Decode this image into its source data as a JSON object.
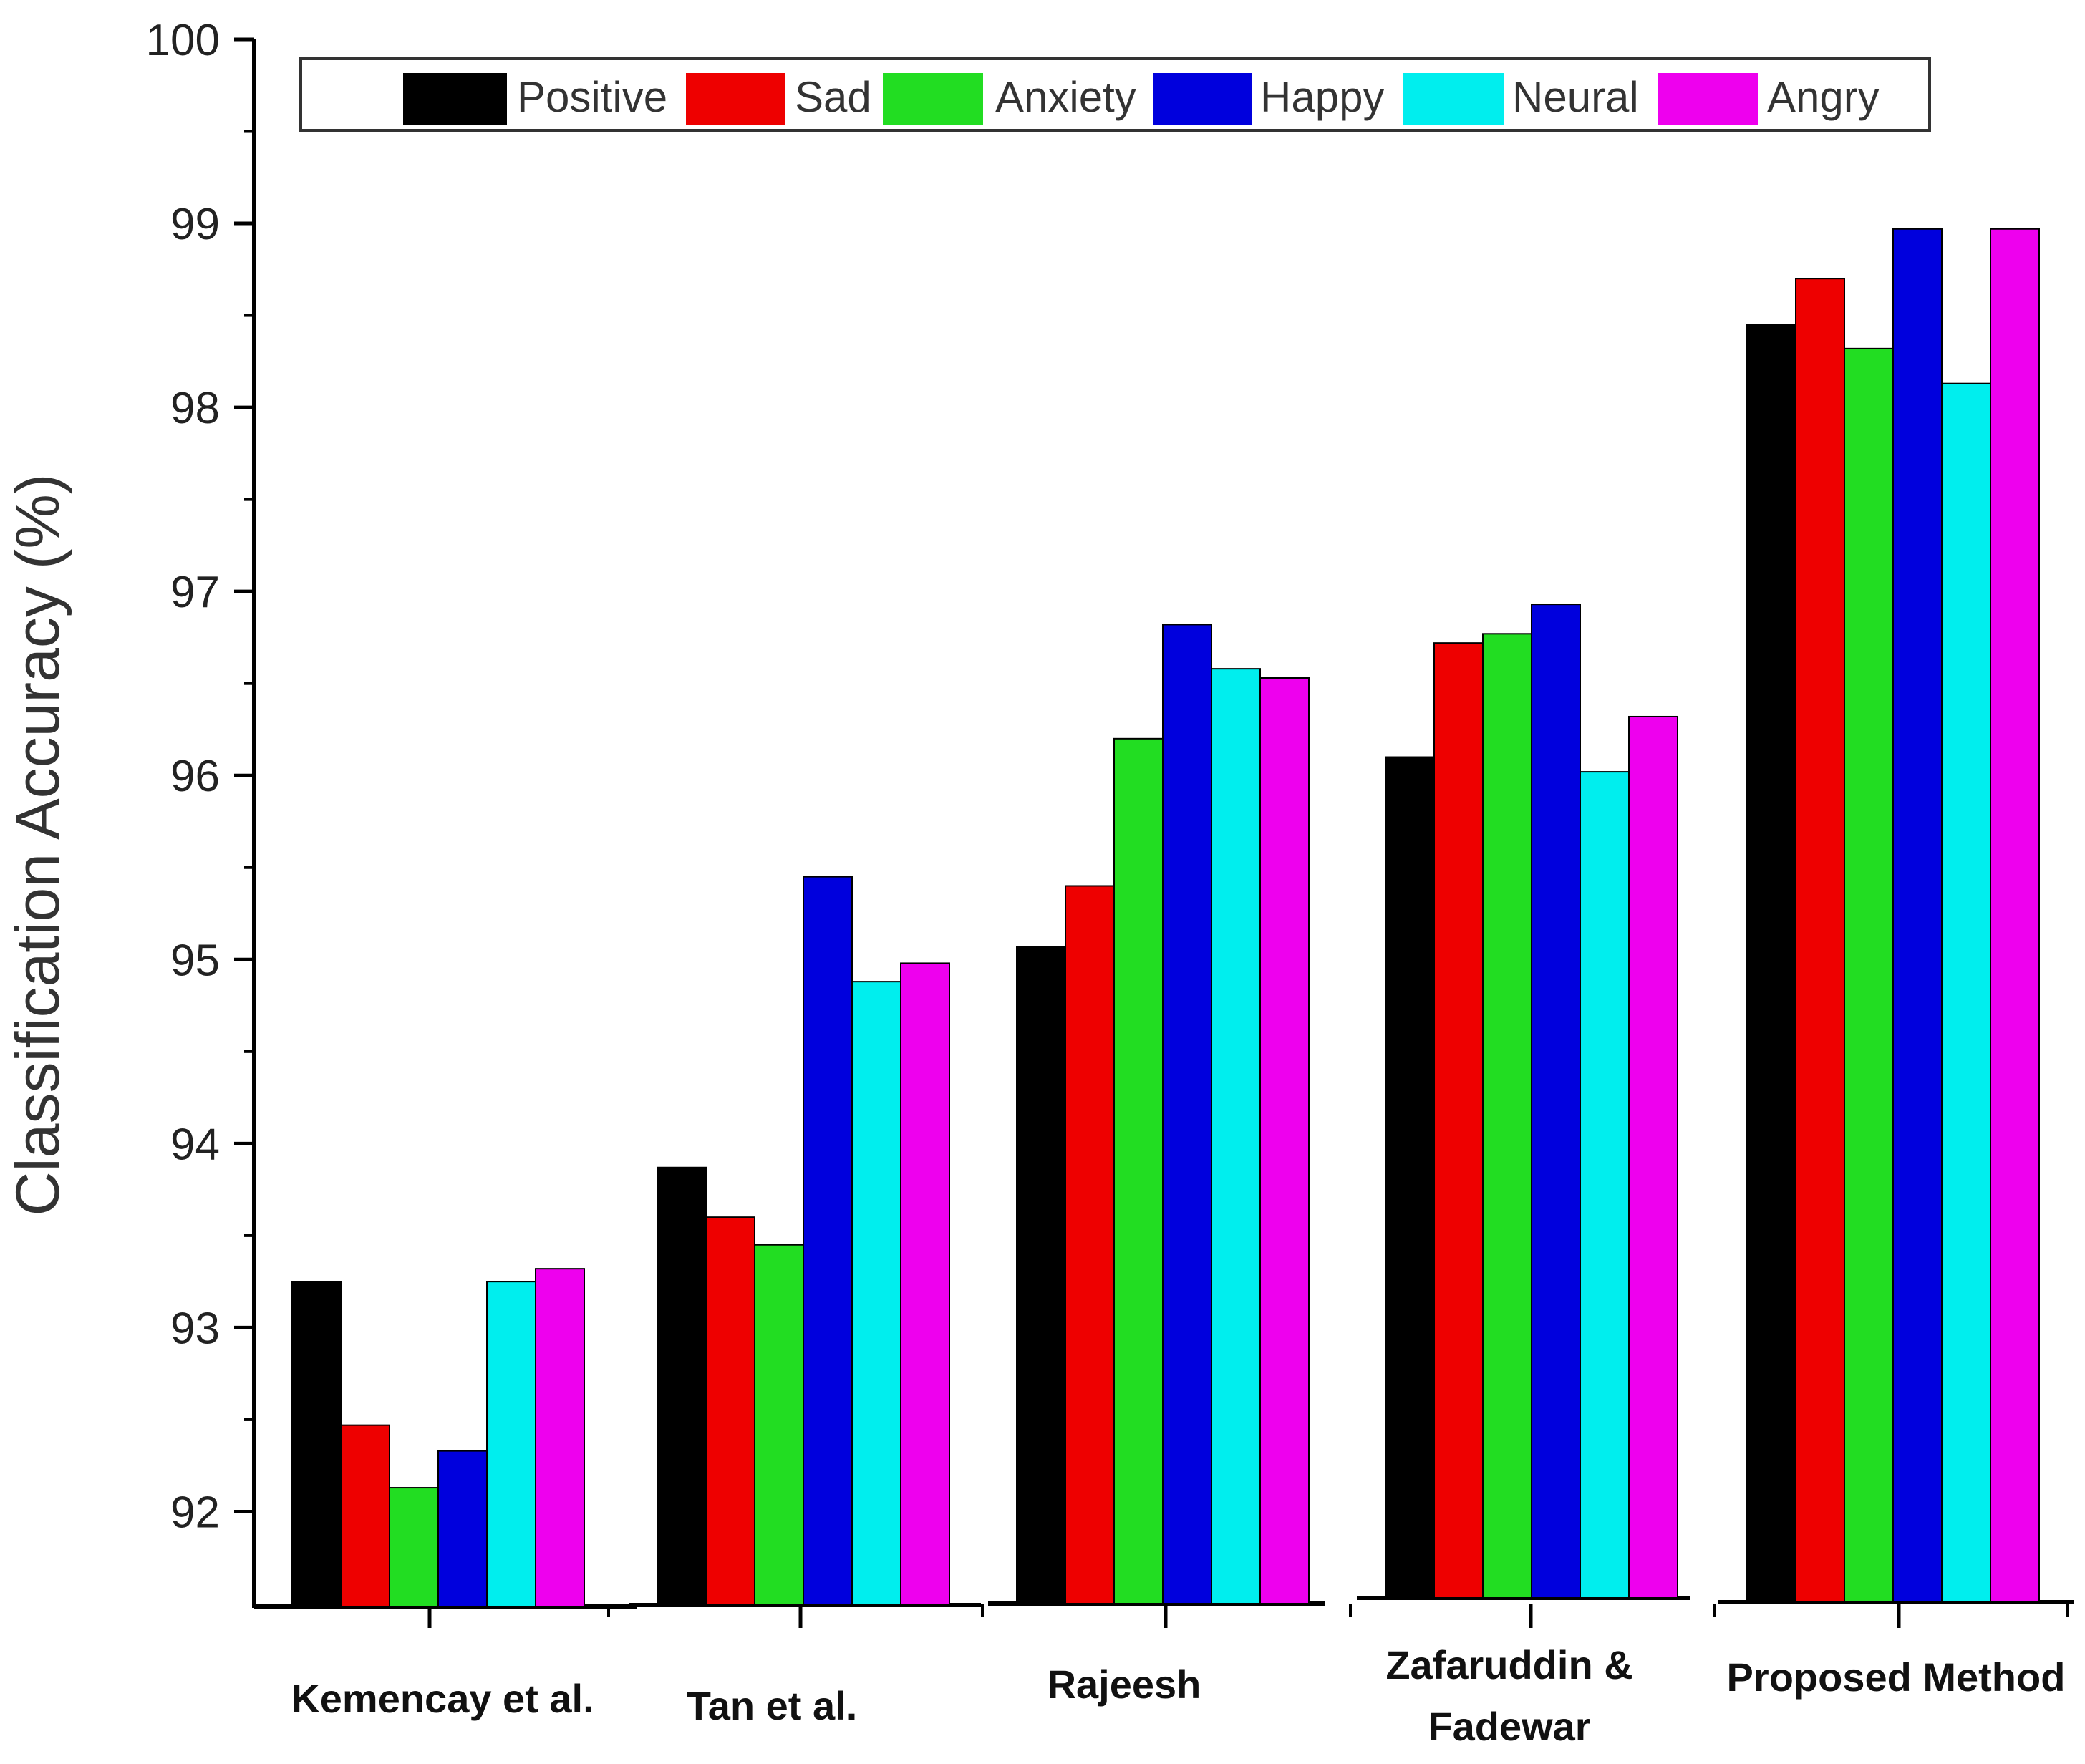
{
  "chart_data": {
    "type": "bar",
    "title": "",
    "xlabel": "",
    "ylabel": "Classification Accuracy (%)",
    "ylim": [
      91.5,
      100
    ],
    "yticks": [
      92,
      93,
      94,
      95,
      96,
      97,
      98,
      99,
      100
    ],
    "grid": false,
    "legend_position": "top",
    "categories": [
      [
        "Kemencay et al."
      ],
      [
        "Tan et al."
      ],
      [
        "Rajeesh"
      ],
      [
        "Zafaruddin &",
        "Fadewar"
      ],
      [
        "Proposed Method"
      ]
    ],
    "series": [
      {
        "name": "Positive",
        "color": "#000000",
        "values": [
          93.25,
          93.87,
          95.07,
          96.1,
          98.45
        ]
      },
      {
        "name": "Sad",
        "color": "#ee0000",
        "values": [
          92.47,
          93.6,
          95.4,
          96.72,
          98.7
        ]
      },
      {
        "name": "Anxiety",
        "color": "#22dd22",
        "values": [
          92.13,
          93.45,
          96.2,
          96.77,
          98.32
        ]
      },
      {
        "name": "Happy",
        "color": "#0000dd",
        "values": [
          92.33,
          95.45,
          96.82,
          96.93,
          98.97
        ]
      },
      {
        "name": "Neural",
        "color": "#00eeee",
        "values": [
          93.25,
          94.88,
          96.58,
          96.02,
          98.13
        ]
      },
      {
        "name": "Angry",
        "color": "#ee00ee",
        "values": [
          93.32,
          94.98,
          96.53,
          96.32,
          98.97
        ]
      }
    ]
  }
}
